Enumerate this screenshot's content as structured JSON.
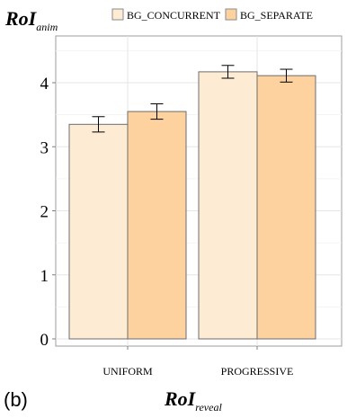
{
  "chart_data": {
    "type": "bar",
    "title_main": "RoI",
    "title_sub": "anim",
    "xlabel_main": "RoI",
    "xlabel_sub": "reveal",
    "panel_label": "(b)",
    "categories": [
      "UNIFORM",
      "PROGRESSIVE"
    ],
    "series": [
      {
        "name": "BG_CONCURRENT",
        "color": "#FDEBD3",
        "values": [
          3.35,
          4.17
        ],
        "errors": [
          0.12,
          0.1
        ]
      },
      {
        "name": "BG_SEPARATE",
        "color": "#FDD29E",
        "values": [
          3.55,
          4.11
        ],
        "errors": [
          0.12,
          0.1
        ]
      }
    ],
    "yticks": [
      0,
      1,
      2,
      3,
      4
    ],
    "ylim": [
      -0.08,
      4.72
    ],
    "grid": true,
    "legend_position": "top"
  }
}
